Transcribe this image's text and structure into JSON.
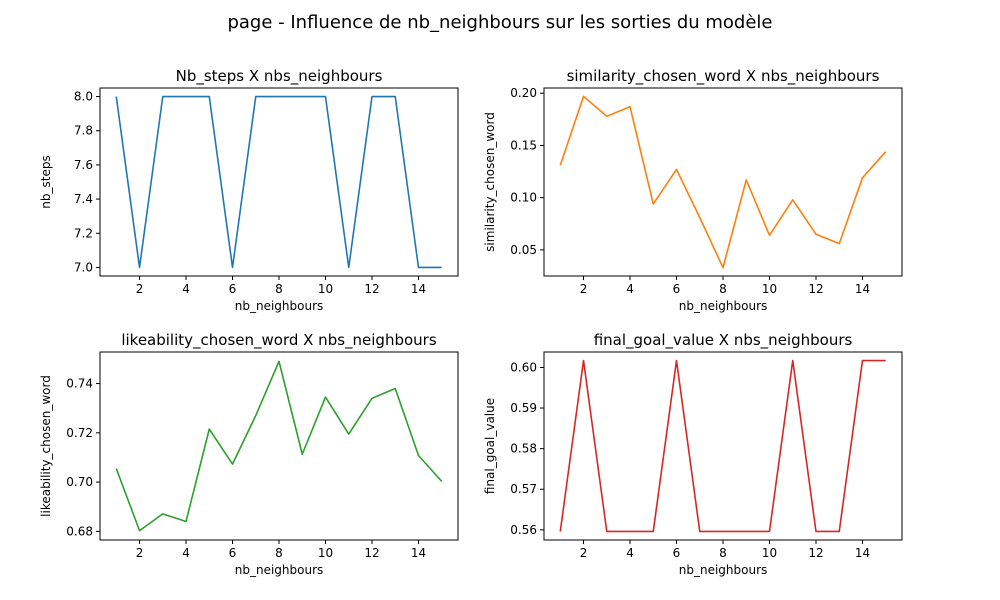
{
  "figure": {
    "suptitle": "page - Influence de nb_neighbours sur les sorties du modèle",
    "suptitle_color": "#b22222"
  },
  "chart_data": [
    {
      "type": "line",
      "title": "Nb_steps X nbs_neighbours",
      "xlabel": "nb_neighbours",
      "ylabel": "nb_steps",
      "color": "#1f77b4",
      "x": [
        1,
        2,
        3,
        4,
        5,
        6,
        7,
        8,
        9,
        10,
        11,
        12,
        13,
        14,
        15
      ],
      "y": [
        8,
        7,
        8,
        8,
        8,
        7,
        8,
        8,
        8,
        8,
        7,
        8,
        8,
        7,
        7
      ],
      "xlim": [
        0.3,
        15.7
      ],
      "ylim": [
        6.95,
        8.05
      ],
      "xticks": [
        2,
        4,
        6,
        8,
        10,
        12,
        14
      ],
      "xtick_labels": [
        "2",
        "4",
        "6",
        "8",
        "10",
        "12",
        "14"
      ],
      "yticks": [
        7.0,
        7.2,
        7.4,
        7.6,
        7.8,
        8.0
      ],
      "ytick_labels": [
        "7.0",
        "7.2",
        "7.4",
        "7.6",
        "7.8",
        "8.0"
      ],
      "grid": false
    },
    {
      "type": "line",
      "title": "similarity_chosen_word X nbs_neighbours",
      "xlabel": "nb_neighbours",
      "ylabel": "similarity_chosen_word",
      "color": "#ff7f0e",
      "x": [
        1,
        2,
        3,
        4,
        5,
        6,
        7,
        8,
        9,
        10,
        11,
        12,
        13,
        14,
        15
      ],
      "y": [
        0.131,
        0.197,
        0.178,
        0.187,
        0.094,
        0.127,
        0.081,
        0.033,
        0.117,
        0.064,
        0.098,
        0.065,
        0.056,
        0.119,
        0.144
      ],
      "xlim": [
        0.3,
        15.7
      ],
      "ylim": [
        0.025,
        0.205
      ],
      "xticks": [
        2,
        4,
        6,
        8,
        10,
        12,
        14
      ],
      "xtick_labels": [
        "2",
        "4",
        "6",
        "8",
        "10",
        "12",
        "14"
      ],
      "yticks": [
        0.05,
        0.1,
        0.15,
        0.2
      ],
      "ytick_labels": [
        "0.05",
        "0.10",
        "0.15",
        "0.20"
      ],
      "grid": false
    },
    {
      "type": "line",
      "title": "likeability_chosen_word X nbs_neighbours",
      "xlabel": "nb_neighbours",
      "ylabel": "likeability_chosen_word",
      "color": "#2ca02c",
      "x": [
        1,
        2,
        3,
        4,
        5,
        6,
        7,
        8,
        9,
        10,
        11,
        12,
        13,
        14,
        15
      ],
      "y": [
        0.7055,
        0.6803,
        0.6871,
        0.684,
        0.7215,
        0.7073,
        0.727,
        0.749,
        0.7113,
        0.7345,
        0.7195,
        0.734,
        0.738,
        0.7108,
        0.7003
      ],
      "xlim": [
        0.3,
        15.7
      ],
      "ylim": [
        0.6765,
        0.7528
      ],
      "xticks": [
        2,
        4,
        6,
        8,
        10,
        12,
        14
      ],
      "xtick_labels": [
        "2",
        "4",
        "6",
        "8",
        "10",
        "12",
        "14"
      ],
      "yticks": [
        0.68,
        0.7,
        0.72,
        0.74
      ],
      "ytick_labels": [
        "0.68",
        "0.70",
        "0.72",
        "0.74"
      ],
      "grid": false
    },
    {
      "type": "line",
      "title": "final_goal_value X nbs_neighbours",
      "xlabel": "nb_neighbours",
      "ylabel": "final_goal_value",
      "color": "#d62728",
      "x": [
        1,
        2,
        3,
        4,
        5,
        6,
        7,
        8,
        9,
        10,
        11,
        12,
        13,
        14,
        15
      ],
      "y": [
        0.5596,
        0.6017,
        0.5596,
        0.5596,
        0.5596,
        0.6017,
        0.5596,
        0.5596,
        0.5596,
        0.5596,
        0.6017,
        0.5596,
        0.5596,
        0.6017,
        0.6017
      ],
      "xlim": [
        0.3,
        15.7
      ],
      "ylim": [
        0.5575,
        0.6038
      ],
      "xticks": [
        2,
        4,
        6,
        8,
        10,
        12,
        14
      ],
      "xtick_labels": [
        "2",
        "4",
        "6",
        "8",
        "10",
        "12",
        "14"
      ],
      "yticks": [
        0.56,
        0.57,
        0.58,
        0.59,
        0.6
      ],
      "ytick_labels": [
        "0.56",
        "0.57",
        "0.58",
        "0.59",
        "0.60"
      ],
      "grid": false
    }
  ]
}
